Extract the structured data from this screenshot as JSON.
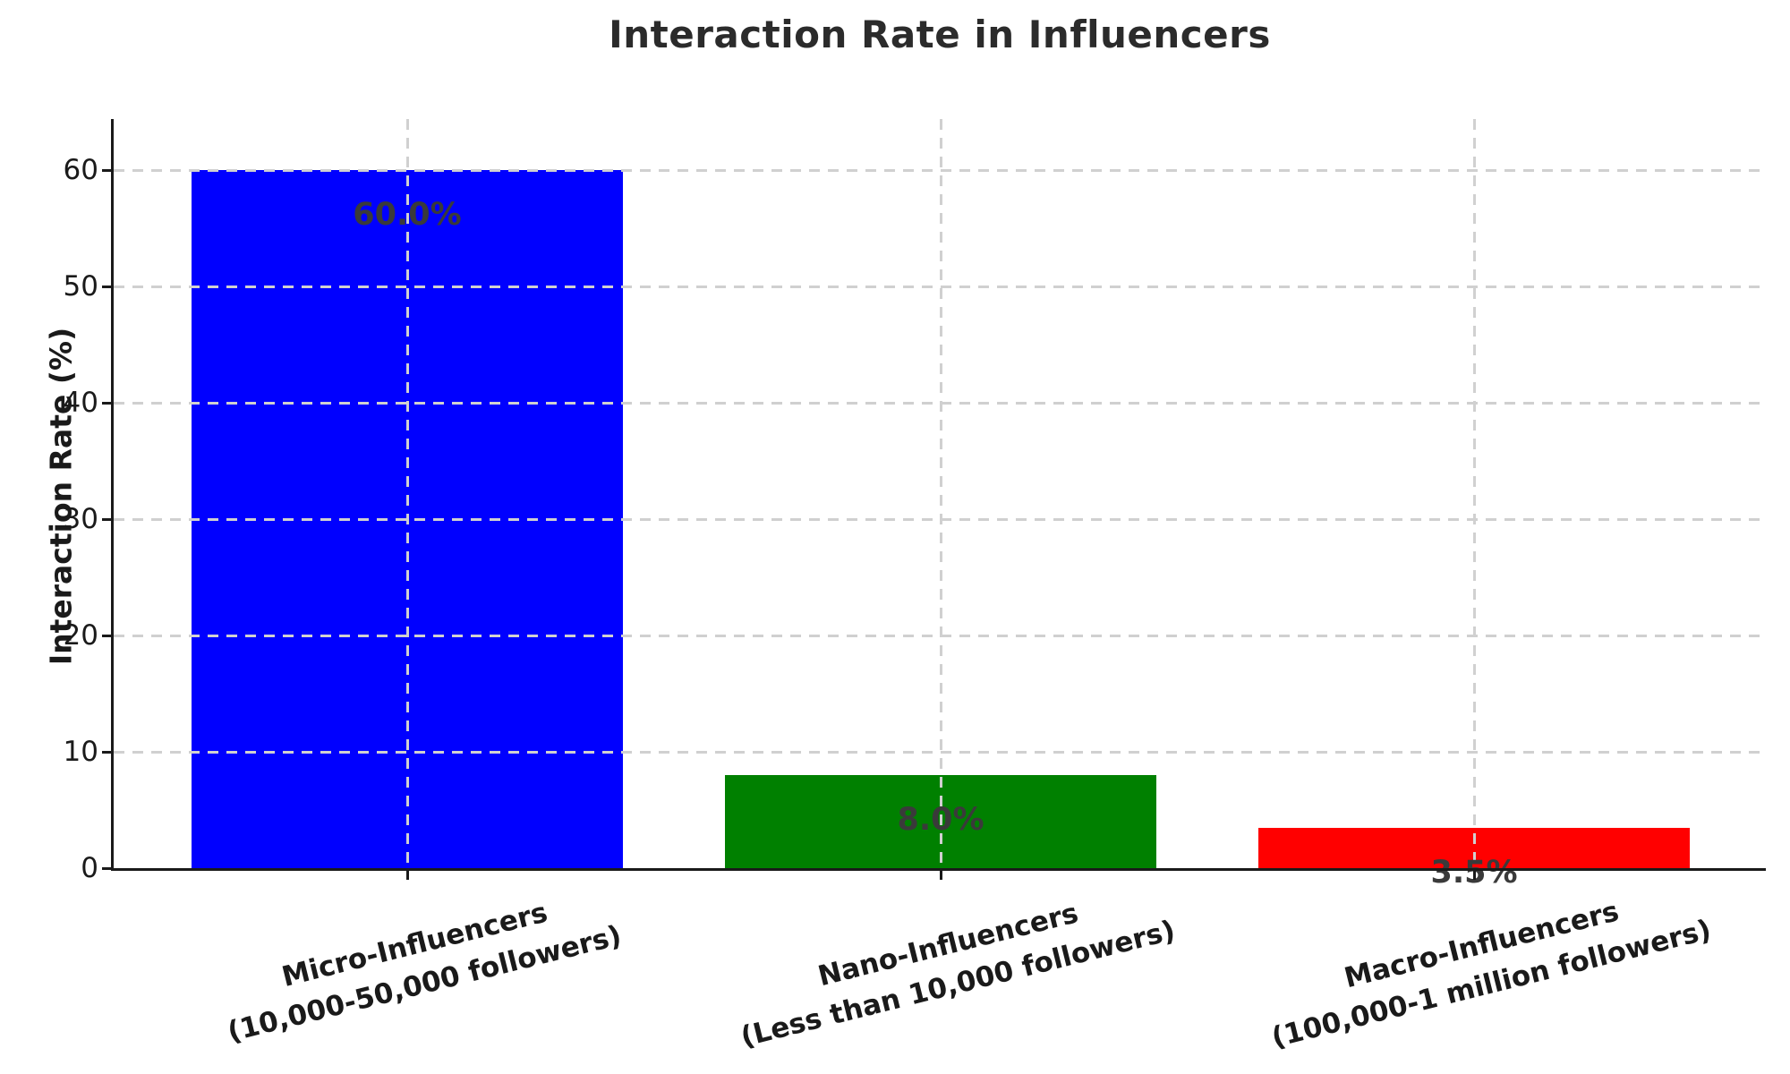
{
  "chart_data": {
    "type": "bar",
    "title": "Interaction Rate in Influencers",
    "ylabel": "Interaction Rate (%)",
    "xlabel": "",
    "categories": [
      "Micro-Influencers\n(10,000-50,000 followers)",
      "Nano-Influencers\n(Less than 10,000 followers)",
      "Macro-Influencers\n(100,000-1 million followers)"
    ],
    "category_lines": [
      [
        "Micro-Influencers",
        "(10,000-50,000 followers)"
      ],
      [
        "Nano-Influencers",
        "(Less than 10,000 followers)"
      ],
      [
        "Macro-Influencers",
        "(100,000-1 million followers)"
      ]
    ],
    "values": [
      60.0,
      8.0,
      3.5
    ],
    "value_labels": [
      "60.0%",
      "8.0%",
      "3.5%"
    ],
    "bar_colors": [
      "#0000ff",
      "#008000",
      "#ff0000"
    ],
    "yticks": [
      0,
      10,
      20,
      30,
      40,
      50,
      60
    ],
    "ylim": [
      0,
      64.4
    ],
    "grid": true,
    "grid_style": "dashed",
    "legend_position": "none",
    "colors": {
      "axis": "#1a1a1a",
      "grid": "#d0d0d0",
      "title_text": "#2b2b2b",
      "tick_text": "#1a1a1a",
      "value_label_text": "#3a3a3a",
      "background": "#ffffff"
    }
  }
}
